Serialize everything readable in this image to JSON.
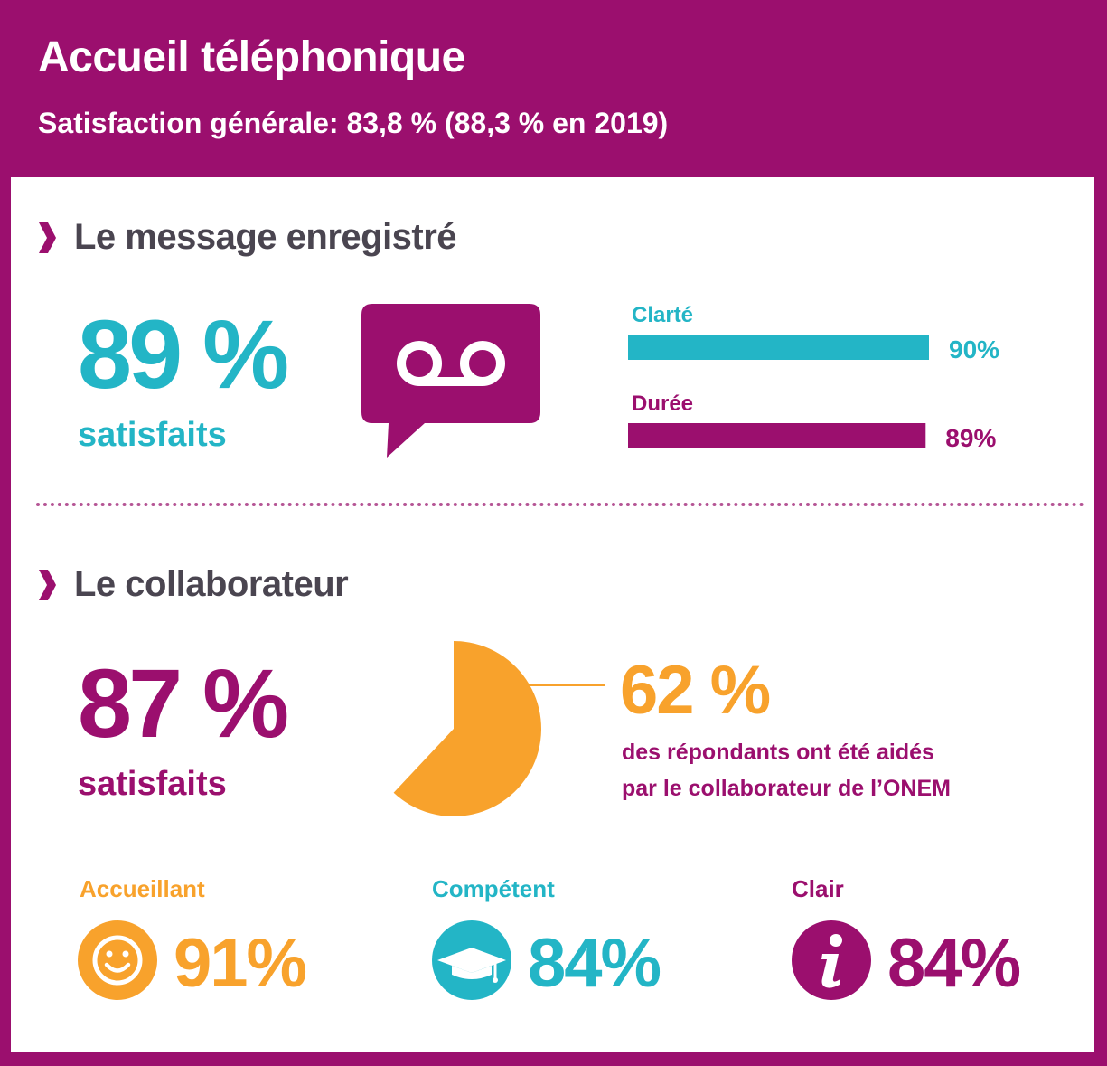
{
  "header": {
    "title": "Accueil téléphonique",
    "subtitle": "Satisfaction générale: 83,8 % (88,3 % en 2019)"
  },
  "colors": {
    "purple": "#9b0f6e",
    "teal": "#23b5c6",
    "orange": "#f8a22c",
    "heading": "#4a4550"
  },
  "message_section": {
    "heading": "Le message enregistré",
    "icon": "voicemail-icon",
    "big_value": "89 %",
    "big_label": "satisfaits"
  },
  "collaborator_section": {
    "heading": "Le collaborateur",
    "big_value": "87 %",
    "big_label": "satisfaits",
    "pie_value": "62 %",
    "pie_text_line1": "des répondants ont été aidés",
    "pie_text_line2": "par le collaborateur de l’ONEM",
    "metrics": [
      {
        "label": "Accueillant",
        "value": "91%",
        "icon": "smiley-icon"
      },
      {
        "label": "Compétent",
        "value": "84%",
        "icon": "graduation-cap-icon"
      },
      {
        "label": "Clair",
        "value": "84%",
        "icon": "info-icon"
      }
    ]
  },
  "chart_data": [
    {
      "type": "bar",
      "orientation": "horizontal",
      "categories": [
        "Clarté",
        "Durée"
      ],
      "values": [
        90,
        89
      ],
      "value_labels": [
        "90%",
        "89%"
      ],
      "xlim": [
        0,
        100
      ],
      "colors": [
        "#23b5c6",
        "#9b0f6e"
      ]
    },
    {
      "type": "pie",
      "slices": [
        {
          "label": "62 %",
          "value": 62,
          "color": "#f8a22c"
        }
      ]
    }
  ]
}
